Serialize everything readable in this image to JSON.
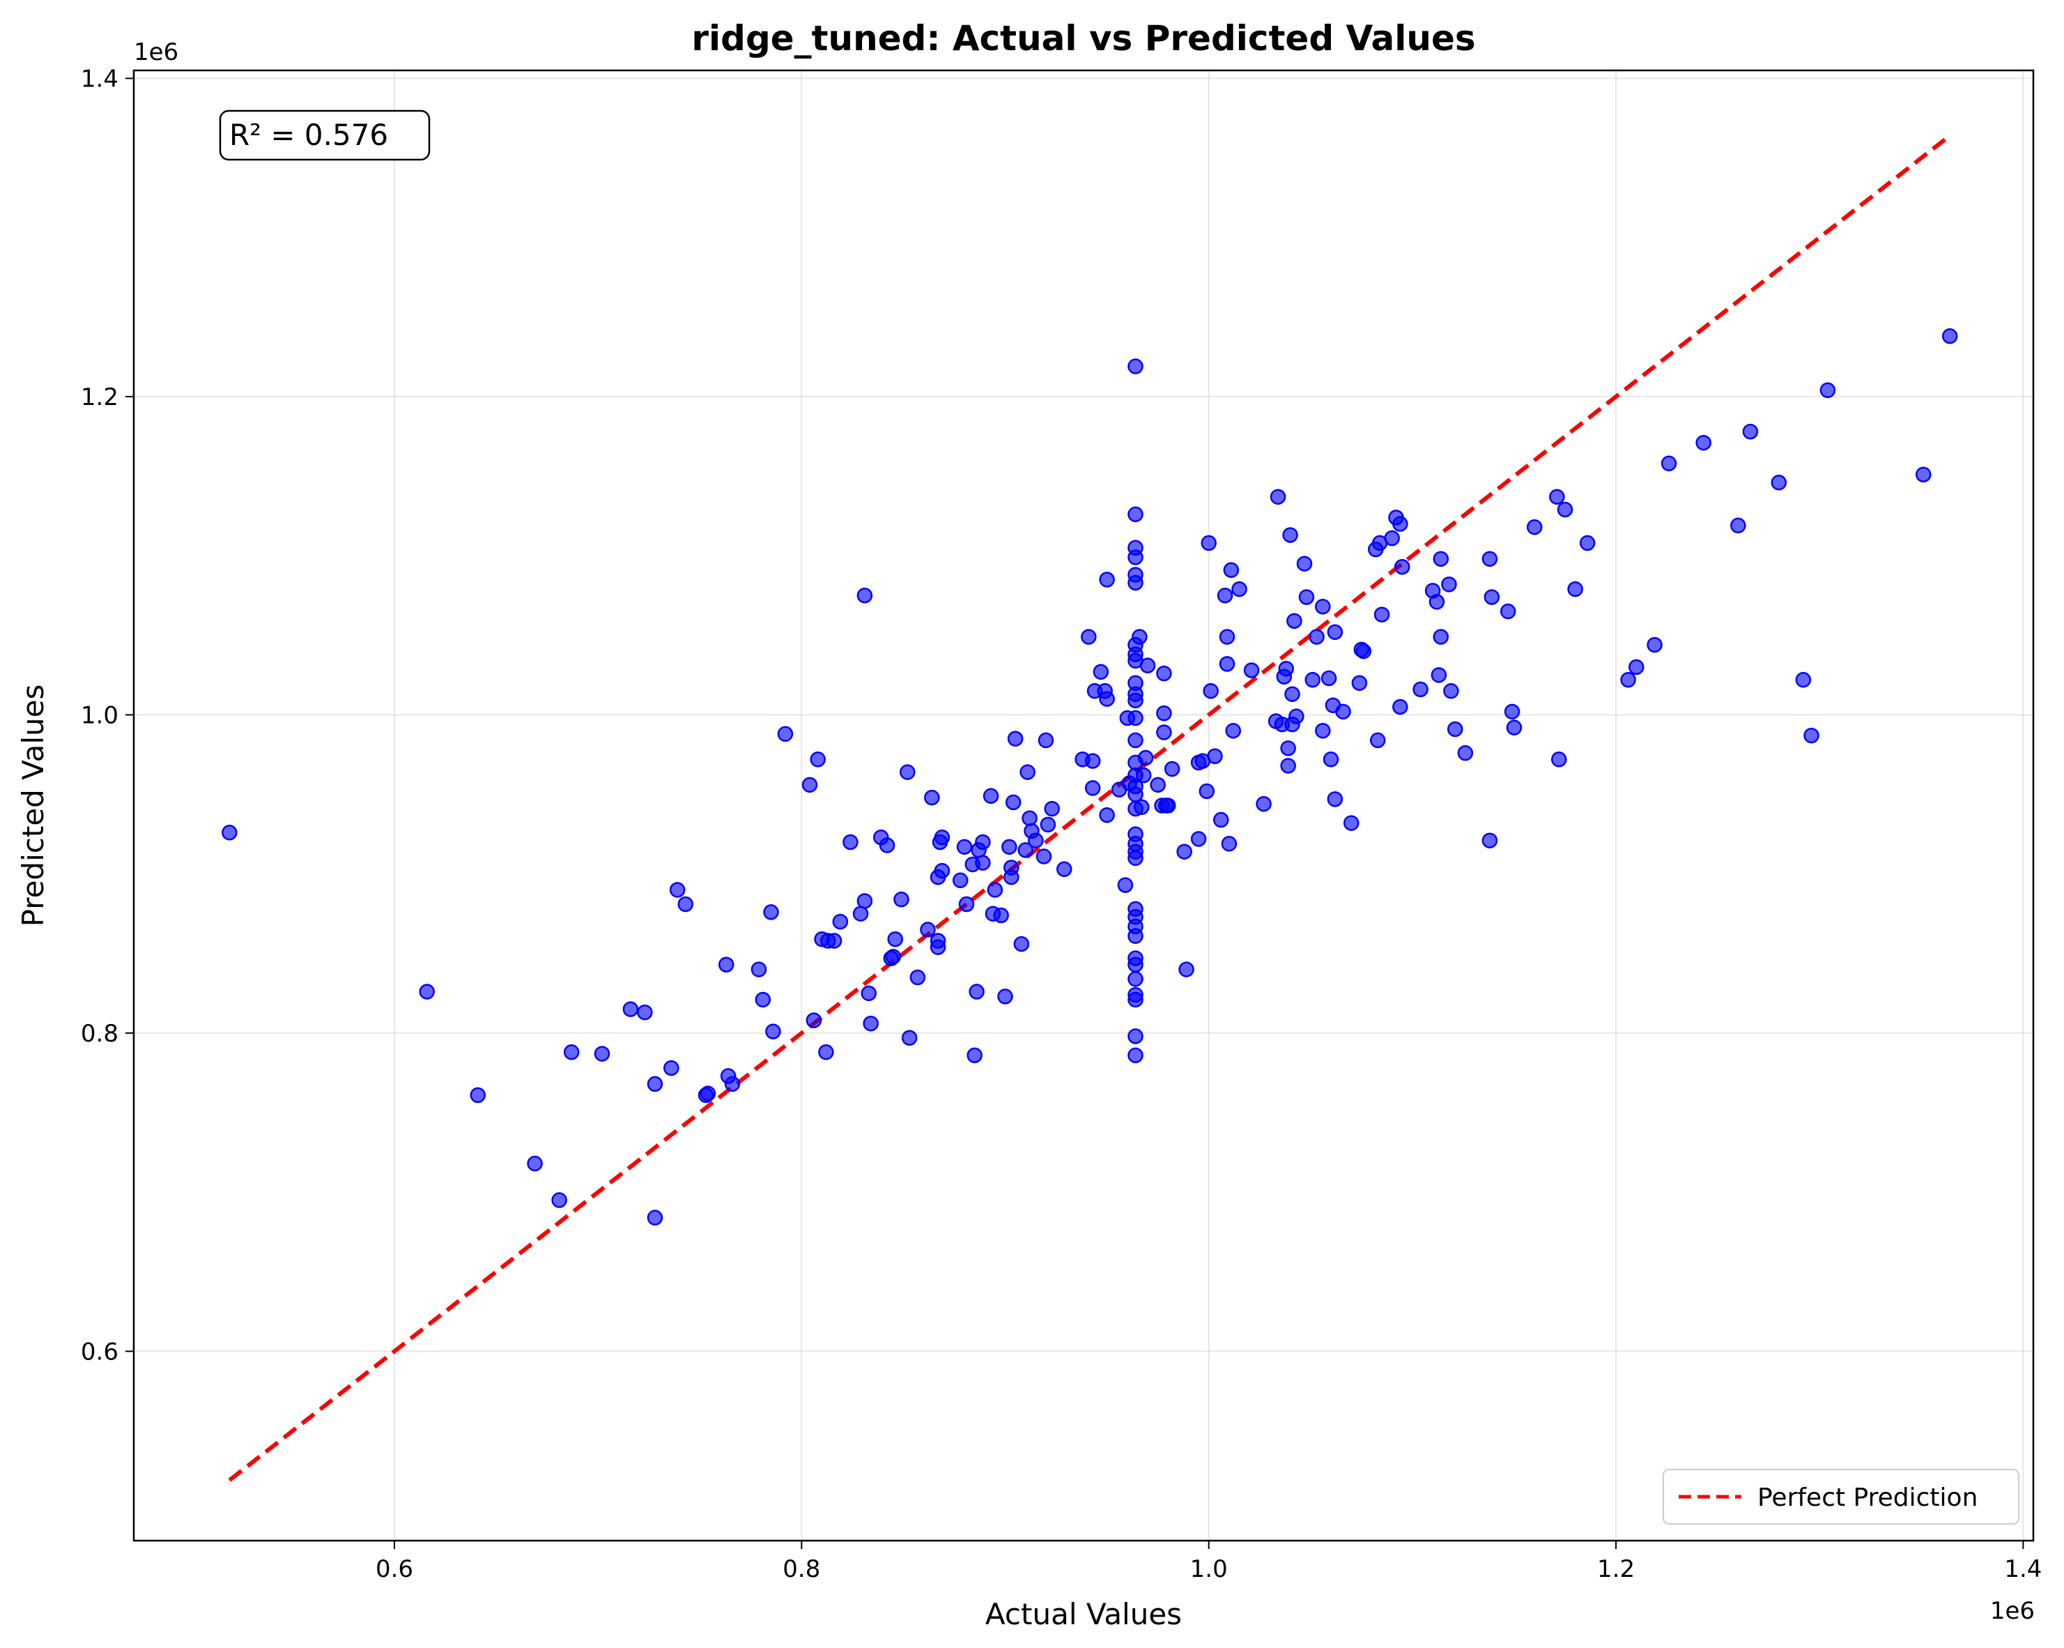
{
  "chart_data": {
    "type": "scatter",
    "title": "ridge_tuned: Actual vs Predicted Values",
    "xlabel": "Actual Values",
    "ylabel": "Predicted Values",
    "x_offset_label": "1e6",
    "y_offset_label": "1e6",
    "xlim": [
      0.472,
      1.405
    ],
    "ylim": [
      0.481,
      1.405
    ],
    "x_ticks": [
      0.6,
      0.8,
      1.0,
      1.2,
      1.4
    ],
    "y_ticks": [
      0.6,
      0.8,
      1.0,
      1.2,
      1.4
    ],
    "x_tick_labels": [
      "0.6",
      "0.8",
      "1.0",
      "1.2",
      "1.4"
    ],
    "y_tick_labels": [
      "0.6",
      "0.8",
      "1.0",
      "1.2",
      "1.4"
    ],
    "grid": true,
    "legend_position": "lower-right",
    "annotation": "R² = 0.576",
    "point_color": "#0000ff",
    "line_color": "#ff0000",
    "reference_line": {
      "name": "Perfect Prediction",
      "x": [
        0.519,
        1.363
      ],
      "y": [
        0.519,
        1.363
      ]
    },
    "points": [
      [
        0.519,
        0.926
      ],
      [
        0.616,
        0.826
      ],
      [
        0.641,
        0.761
      ],
      [
        0.669,
        0.718
      ],
      [
        0.681,
        0.695
      ],
      [
        0.687,
        0.788
      ],
      [
        0.702,
        0.787
      ],
      [
        0.716,
        0.815
      ],
      [
        0.723,
        0.813
      ],
      [
        0.728,
        0.768
      ],
      [
        0.728,
        0.684
      ],
      [
        0.736,
        0.778
      ],
      [
        0.739,
        0.89
      ],
      [
        0.743,
        0.881
      ],
      [
        0.753,
        0.761
      ],
      [
        0.754,
        0.762
      ],
      [
        0.763,
        0.843
      ],
      [
        0.764,
        0.773
      ],
      [
        0.766,
        0.768
      ],
      [
        0.779,
        0.84
      ],
      [
        0.781,
        0.821
      ],
      [
        0.785,
        0.876
      ],
      [
        0.786,
        0.801
      ],
      [
        0.792,
        0.988
      ],
      [
        0.804,
        0.956
      ],
      [
        0.806,
        0.808
      ],
      [
        0.808,
        0.972
      ],
      [
        0.81,
        0.859
      ],
      [
        0.812,
        0.788
      ],
      [
        0.813,
        0.858
      ],
      [
        0.816,
        0.858
      ],
      [
        0.819,
        0.87
      ],
      [
        0.824,
        0.92
      ],
      [
        0.829,
        0.875
      ],
      [
        0.831,
        0.883
      ],
      [
        0.831,
        1.075
      ],
      [
        0.833,
        0.825
      ],
      [
        0.834,
        0.806
      ],
      [
        0.839,
        0.923
      ],
      [
        0.842,
        0.918
      ],
      [
        0.844,
        0.847
      ],
      [
        0.845,
        0.848
      ],
      [
        0.846,
        0.859
      ],
      [
        0.849,
        0.884
      ],
      [
        0.852,
        0.964
      ],
      [
        0.853,
        0.797
      ],
      [
        0.857,
        0.835
      ],
      [
        0.862,
        0.865
      ],
      [
        0.864,
        0.948
      ],
      [
        0.867,
        0.854
      ],
      [
        0.867,
        0.858
      ],
      [
        0.867,
        0.898
      ],
      [
        0.868,
        0.92
      ],
      [
        0.869,
        0.923
      ],
      [
        0.869,
        0.902
      ],
      [
        0.878,
        0.896
      ],
      [
        0.88,
        0.917
      ],
      [
        0.881,
        0.881
      ],
      [
        0.884,
        0.906
      ],
      [
        0.885,
        0.786
      ],
      [
        0.886,
        0.826
      ],
      [
        0.887,
        0.915
      ],
      [
        0.889,
        0.92
      ],
      [
        0.889,
        0.907
      ],
      [
        0.893,
        0.949
      ],
      [
        0.894,
        0.875
      ],
      [
        0.895,
        0.89
      ],
      [
        0.898,
        0.874
      ],
      [
        0.9,
        0.823
      ],
      [
        0.902,
        0.917
      ],
      [
        0.903,
        0.898
      ],
      [
        0.903,
        0.904
      ],
      [
        0.904,
        0.945
      ],
      [
        0.905,
        0.985
      ],
      [
        0.908,
        0.856
      ],
      [
        0.91,
        0.915
      ],
      [
        0.911,
        0.964
      ],
      [
        0.912,
        0.935
      ],
      [
        0.913,
        0.927
      ],
      [
        0.915,
        0.921
      ],
      [
        0.919,
        0.911
      ],
      [
        0.92,
        0.984
      ],
      [
        0.921,
        0.931
      ],
      [
        0.923,
        0.941
      ],
      [
        0.929,
        0.903
      ],
      [
        0.938,
        0.972
      ],
      [
        0.941,
        1.049
      ],
      [
        0.943,
        0.971
      ],
      [
        0.943,
        0.954
      ],
      [
        0.944,
        1.015
      ],
      [
        0.947,
        1.027
      ],
      [
        0.949,
        1.015
      ],
      [
        0.95,
        0.937
      ],
      [
        0.95,
        1.01
      ],
      [
        0.95,
        1.085
      ],
      [
        0.956,
        0.953
      ],
      [
        0.959,
        0.893
      ],
      [
        0.96,
        0.998
      ],
      [
        0.961,
        0.957
      ],
      [
        0.964,
        1.219
      ],
      [
        0.964,
        1.126
      ],
      [
        0.964,
        1.105
      ],
      [
        0.964,
        1.099
      ],
      [
        0.964,
        1.088
      ],
      [
        0.964,
        1.083
      ],
      [
        0.964,
        1.044
      ],
      [
        0.964,
        1.038
      ],
      [
        0.964,
        1.034
      ],
      [
        0.964,
        1.02
      ],
      [
        0.964,
        1.013
      ],
      [
        0.964,
        1.009
      ],
      [
        0.964,
        0.998
      ],
      [
        0.964,
        0.984
      ],
      [
        0.964,
        0.97
      ],
      [
        0.964,
        0.962
      ],
      [
        0.964,
        0.955
      ],
      [
        0.964,
        0.95
      ],
      [
        0.964,
        0.941
      ],
      [
        0.964,
        0.925
      ],
      [
        0.964,
        0.919
      ],
      [
        0.964,
        0.914
      ],
      [
        0.964,
        0.91
      ],
      [
        0.964,
        0.878
      ],
      [
        0.964,
        0.873
      ],
      [
        0.964,
        0.867
      ],
      [
        0.964,
        0.861
      ],
      [
        0.964,
        0.847
      ],
      [
        0.964,
        0.843
      ],
      [
        0.964,
        0.834
      ],
      [
        0.964,
        0.824
      ],
      [
        0.964,
        0.821
      ],
      [
        0.964,
        0.798
      ],
      [
        0.964,
        0.786
      ],
      [
        0.966,
        1.049
      ],
      [
        0.967,
        0.942
      ],
      [
        0.968,
        0.962
      ],
      [
        0.969,
        0.973
      ],
      [
        0.97,
        1.031
      ],
      [
        0.975,
        0.956
      ],
      [
        0.977,
        0.943
      ],
      [
        0.978,
        1.026
      ],
      [
        0.978,
        1.001
      ],
      [
        0.978,
        0.989
      ],
      [
        0.979,
        0.943
      ],
      [
        0.98,
        0.943
      ],
      [
        0.982,
        0.966
      ],
      [
        0.988,
        0.914
      ],
      [
        0.989,
        0.84
      ],
      [
        0.995,
        0.922
      ],
      [
        0.995,
        0.97
      ],
      [
        0.997,
        0.971
      ],
      [
        0.999,
        0.952
      ],
      [
        1.0,
        1.108
      ],
      [
        1.001,
        1.015
      ],
      [
        1.003,
        0.974
      ],
      [
        1.006,
        0.934
      ],
      [
        1.008,
        1.075
      ],
      [
        1.009,
        1.049
      ],
      [
        1.009,
        1.032
      ],
      [
        1.01,
        0.919
      ],
      [
        1.011,
        1.091
      ],
      [
        1.012,
        0.99
      ],
      [
        1.015,
        1.079
      ],
      [
        1.021,
        1.028
      ],
      [
        1.027,
        0.944
      ],
      [
        1.033,
        0.996
      ],
      [
        1.034,
        1.137
      ],
      [
        1.036,
        0.994
      ],
      [
        1.037,
        1.024
      ],
      [
        1.038,
        1.029
      ],
      [
        1.039,
        0.968
      ],
      [
        1.039,
        0.979
      ],
      [
        1.04,
        1.113
      ],
      [
        1.041,
        0.994
      ],
      [
        1.041,
        1.013
      ],
      [
        1.042,
        1.059
      ],
      [
        1.043,
        0.999
      ],
      [
        1.047,
        1.095
      ],
      [
        1.048,
        1.074
      ],
      [
        1.051,
        1.022
      ],
      [
        1.053,
        1.049
      ],
      [
        1.056,
        1.068
      ],
      [
        1.056,
        0.99
      ],
      [
        1.059,
        1.023
      ],
      [
        1.06,
        0.972
      ],
      [
        1.061,
        1.006
      ],
      [
        1.062,
        0.947
      ],
      [
        1.062,
        1.052
      ],
      [
        1.066,
        1.002
      ],
      [
        1.07,
        0.932
      ],
      [
        1.074,
        1.02
      ],
      [
        1.075,
        1.041
      ],
      [
        1.076,
        1.04
      ],
      [
        1.082,
        1.104
      ],
      [
        1.083,
        0.984
      ],
      [
        1.084,
        1.108
      ],
      [
        1.085,
        1.063
      ],
      [
        1.09,
        1.111
      ],
      [
        1.092,
        1.124
      ],
      [
        1.094,
        1.005
      ],
      [
        1.094,
        1.12
      ],
      [
        1.095,
        1.093
      ],
      [
        1.104,
        1.016
      ],
      [
        1.11,
        1.078
      ],
      [
        1.112,
        1.071
      ],
      [
        1.113,
        1.025
      ],
      [
        1.114,
        1.049
      ],
      [
        1.114,
        1.098
      ],
      [
        1.118,
        1.082
      ],
      [
        1.119,
        1.015
      ],
      [
        1.121,
        0.991
      ],
      [
        1.126,
        0.976
      ],
      [
        1.138,
        0.921
      ],
      [
        1.138,
        1.098
      ],
      [
        1.139,
        1.074
      ],
      [
        1.147,
        1.065
      ],
      [
        1.149,
        1.002
      ],
      [
        1.15,
        0.992
      ],
      [
        1.16,
        1.118
      ],
      [
        1.171,
        1.137
      ],
      [
        1.172,
        0.972
      ],
      [
        1.175,
        1.129
      ],
      [
        1.18,
        1.079
      ],
      [
        1.186,
        1.108
      ],
      [
        1.206,
        1.022
      ],
      [
        1.21,
        1.03
      ],
      [
        1.219,
        1.044
      ],
      [
        1.226,
        1.158
      ],
      [
        1.243,
        1.171
      ],
      [
        1.26,
        1.119
      ],
      [
        1.266,
        1.178
      ],
      [
        1.28,
        1.146
      ],
      [
        1.292,
        1.022
      ],
      [
        1.296,
        0.987
      ],
      [
        1.304,
        1.204
      ],
      [
        1.351,
        1.151
      ],
      [
        1.364,
        1.238
      ]
    ]
  }
}
